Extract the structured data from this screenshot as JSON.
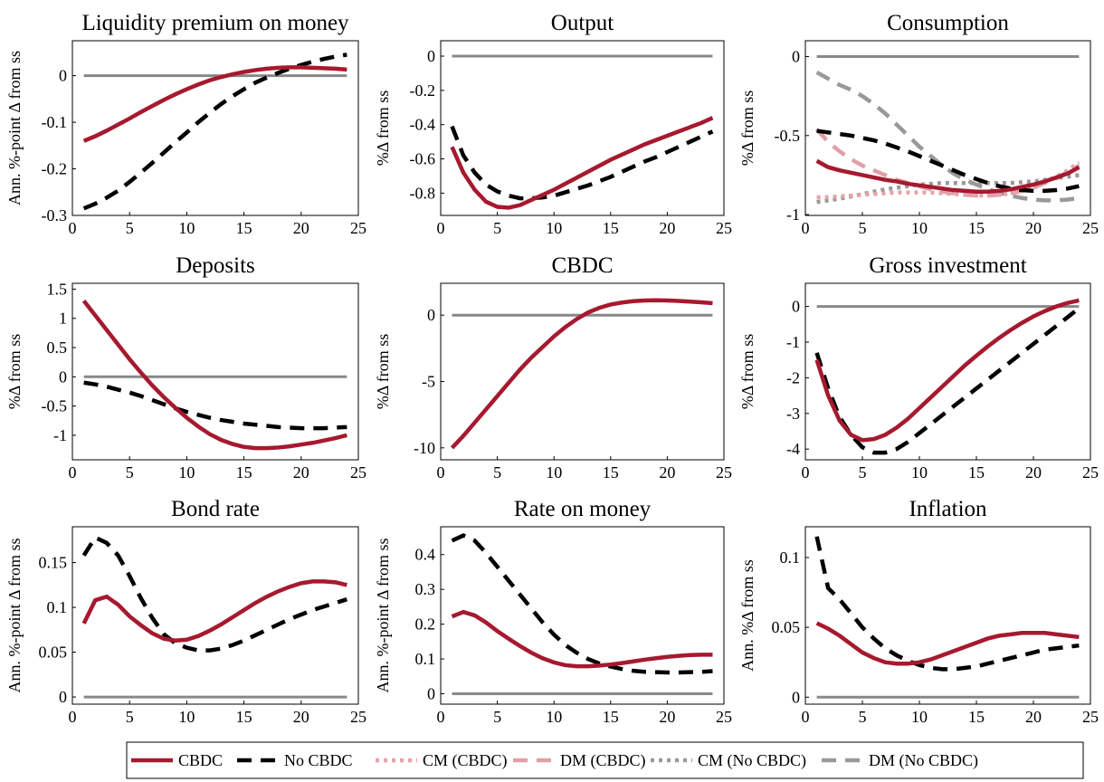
{
  "chart_data": [
    {
      "type": "line",
      "title": "Liquidity premium on money",
      "ylabel": "Ann. %-point Δ from ss",
      "x": [
        1,
        2,
        3,
        4,
        5,
        6,
        7,
        8,
        9,
        10,
        11,
        12,
        13,
        14,
        15,
        16,
        17,
        18,
        19,
        20,
        21,
        22,
        23,
        24
      ],
      "xlim": [
        0,
        25
      ],
      "xticks": [
        0,
        5,
        10,
        15,
        20,
        25
      ],
      "ylim": [
        -0.3,
        0.075
      ],
      "yticks": [
        -0.3,
        -0.2,
        -0.1,
        0
      ],
      "refline": 0,
      "series": [
        {
          "name": "CBDC",
          "color": "#a6192e",
          "style": "solid",
          "values": [
            -0.14,
            -0.13,
            -0.118,
            -0.105,
            -0.092,
            -0.078,
            -0.065,
            -0.052,
            -0.04,
            -0.029,
            -0.019,
            -0.01,
            -0.003,
            0.003,
            0.008,
            0.012,
            0.015,
            0.017,
            0.018,
            0.018,
            0.017,
            0.016,
            0.015,
            0.013
          ]
        },
        {
          "name": "No CBDC",
          "color": "#000000",
          "style": "dashed",
          "values": [
            -0.285,
            -0.275,
            -0.262,
            -0.247,
            -0.228,
            -0.208,
            -0.187,
            -0.165,
            -0.143,
            -0.122,
            -0.1,
            -0.08,
            -0.061,
            -0.044,
            -0.029,
            -0.015,
            -0.004,
            0.006,
            0.015,
            0.023,
            0.03,
            0.036,
            0.041,
            0.045
          ]
        }
      ]
    },
    {
      "type": "line",
      "title": "Output",
      "ylabel": "%Δ from ss",
      "x": [
        1,
        2,
        3,
        4,
        5,
        6,
        7,
        8,
        9,
        10,
        11,
        12,
        13,
        14,
        15,
        16,
        17,
        18,
        19,
        20,
        21,
        22,
        23,
        24
      ],
      "xlim": [
        0,
        25
      ],
      "xticks": [
        0,
        5,
        10,
        15,
        20,
        25
      ],
      "ylim": [
        -0.93,
        0.09
      ],
      "yticks": [
        -0.8,
        -0.6,
        -0.4,
        -0.2,
        0
      ],
      "refline": 0,
      "series": [
        {
          "name": "CBDC",
          "color": "#a6192e",
          "style": "solid",
          "values": [
            -0.53,
            -0.68,
            -0.78,
            -0.85,
            -0.88,
            -0.885,
            -0.87,
            -0.84,
            -0.81,
            -0.78,
            -0.745,
            -0.71,
            -0.675,
            -0.64,
            -0.605,
            -0.575,
            -0.545,
            -0.515,
            -0.49,
            -0.465,
            -0.44,
            -0.415,
            -0.39,
            -0.36
          ]
        },
        {
          "name": "No CBDC",
          "color": "#000000",
          "style": "dashed",
          "values": [
            -0.41,
            -0.58,
            -0.68,
            -0.75,
            -0.79,
            -0.815,
            -0.83,
            -0.83,
            -0.825,
            -0.815,
            -0.795,
            -0.775,
            -0.755,
            -0.73,
            -0.705,
            -0.675,
            -0.645,
            -0.615,
            -0.59,
            -0.56,
            -0.53,
            -0.5,
            -0.47,
            -0.44
          ]
        }
      ]
    },
    {
      "type": "line",
      "title": "Consumption",
      "ylabel": "%Δ from ss",
      "x": [
        1,
        2,
        3,
        4,
        5,
        6,
        7,
        8,
        9,
        10,
        11,
        12,
        13,
        14,
        15,
        16,
        17,
        18,
        19,
        20,
        21,
        22,
        23,
        24
      ],
      "xlim": [
        0,
        25
      ],
      "xticks": [
        0,
        5,
        10,
        15,
        20,
        25
      ],
      "ylim": [
        -1.005,
        0.1
      ],
      "yticks": [
        -1,
        -0.5,
        0
      ],
      "refline": 0,
      "series": [
        {
          "name": "CBDC",
          "color": "#a6192e",
          "style": "solid",
          "values": [
            -0.66,
            -0.7,
            -0.72,
            -0.735,
            -0.75,
            -0.765,
            -0.78,
            -0.79,
            -0.805,
            -0.815,
            -0.825,
            -0.835,
            -0.845,
            -0.85,
            -0.855,
            -0.855,
            -0.85,
            -0.84,
            -0.825,
            -0.81,
            -0.79,
            -0.765,
            -0.74,
            -0.7
          ]
        },
        {
          "name": "No CBDC",
          "color": "#000000",
          "style": "dashed",
          "values": [
            -0.47,
            -0.48,
            -0.49,
            -0.5,
            -0.515,
            -0.53,
            -0.55,
            -0.575,
            -0.6,
            -0.63,
            -0.66,
            -0.69,
            -0.72,
            -0.75,
            -0.775,
            -0.8,
            -0.82,
            -0.835,
            -0.845,
            -0.85,
            -0.85,
            -0.845,
            -0.835,
            -0.82
          ]
        },
        {
          "name": "CM (CBDC)",
          "color": "#e6a3ad",
          "style": "dotted",
          "values": [
            -0.89,
            -0.89,
            -0.885,
            -0.88,
            -0.875,
            -0.87,
            -0.865,
            -0.86,
            -0.86,
            -0.86,
            -0.86,
            -0.865,
            -0.87,
            -0.875,
            -0.88,
            -0.88,
            -0.875,
            -0.865,
            -0.845,
            -0.82,
            -0.79,
            -0.76,
            -0.72,
            -0.67
          ]
        },
        {
          "name": "DM (CBDC)",
          "color": "#dfa0a8",
          "style": "dashed",
          "values": [
            -0.46,
            -0.54,
            -0.6,
            -0.65,
            -0.69,
            -0.72,
            -0.75,
            -0.78,
            -0.8,
            -0.82,
            -0.84,
            -0.855,
            -0.865,
            -0.875,
            -0.88,
            -0.88,
            -0.875,
            -0.865,
            -0.85,
            -0.83,
            -0.8,
            -0.77,
            -0.73,
            -0.69
          ]
        },
        {
          "name": "CM (No CBDC)",
          "color": "#999999",
          "style": "dotted",
          "values": [
            -0.92,
            -0.91,
            -0.9,
            -0.885,
            -0.87,
            -0.855,
            -0.84,
            -0.83,
            -0.82,
            -0.81,
            -0.805,
            -0.8,
            -0.8,
            -0.8,
            -0.8,
            -0.8,
            -0.8,
            -0.8,
            -0.795,
            -0.79,
            -0.78,
            -0.77,
            -0.76,
            -0.75
          ]
        },
        {
          "name": "DM (No CBDC)",
          "color": "#999999",
          "style": "dashed",
          "values": [
            -0.1,
            -0.14,
            -0.18,
            -0.21,
            -0.25,
            -0.3,
            -0.36,
            -0.43,
            -0.5,
            -0.57,
            -0.63,
            -0.69,
            -0.74,
            -0.78,
            -0.81,
            -0.84,
            -0.86,
            -0.88,
            -0.895,
            -0.905,
            -0.91,
            -0.91,
            -0.905,
            -0.895
          ]
        }
      ]
    },
    {
      "type": "line",
      "title": "Deposits",
      "ylabel": "%Δ from ss",
      "x": [
        1,
        2,
        3,
        4,
        5,
        6,
        7,
        8,
        9,
        10,
        11,
        12,
        13,
        14,
        15,
        16,
        17,
        18,
        19,
        20,
        21,
        22,
        23,
        24
      ],
      "xlim": [
        0,
        25
      ],
      "xticks": [
        0,
        5,
        10,
        15,
        20,
        25
      ],
      "ylim": [
        -1.42,
        1.6
      ],
      "yticks": [
        -1,
        -0.5,
        0,
        0.5,
        1,
        1.5
      ],
      "refline": 0,
      "series": [
        {
          "name": "CBDC",
          "color": "#a6192e",
          "style": "solid",
          "values": [
            1.3,
            1.05,
            0.8,
            0.55,
            0.3,
            0.07,
            -0.15,
            -0.35,
            -0.53,
            -0.7,
            -0.85,
            -0.98,
            -1.08,
            -1.15,
            -1.2,
            -1.22,
            -1.22,
            -1.21,
            -1.19,
            -1.16,
            -1.13,
            -1.09,
            -1.05,
            -1.0
          ]
        },
        {
          "name": "No CBDC",
          "color": "#000000",
          "style": "dashed",
          "values": [
            -0.1,
            -0.13,
            -0.17,
            -0.22,
            -0.27,
            -0.33,
            -0.4,
            -0.47,
            -0.54,
            -0.6,
            -0.65,
            -0.7,
            -0.74,
            -0.77,
            -0.8,
            -0.82,
            -0.84,
            -0.86,
            -0.87,
            -0.88,
            -0.88,
            -0.88,
            -0.87,
            -0.86
          ]
        }
      ]
    },
    {
      "type": "line",
      "title": "CBDC",
      "ylabel": "%Δ from ss",
      "x": [
        1,
        2,
        3,
        4,
        5,
        6,
        7,
        8,
        9,
        10,
        11,
        12,
        13,
        14,
        15,
        16,
        17,
        18,
        19,
        20,
        21,
        22,
        23,
        24
      ],
      "xlim": [
        0,
        25
      ],
      "xticks": [
        0,
        5,
        10,
        15,
        20,
        25
      ],
      "ylim": [
        -10.9,
        2.4
      ],
      "yticks": [
        -10,
        -5,
        0
      ],
      "refline": 0,
      "series": [
        {
          "name": "CBDC",
          "color": "#a6192e",
          "style": "solid",
          "values": [
            -10,
            -9.1,
            -8.1,
            -7.1,
            -6.1,
            -5.1,
            -4.1,
            -3.2,
            -2.4,
            -1.6,
            -0.9,
            -0.3,
            0.2,
            0.55,
            0.8,
            0.95,
            1.05,
            1.1,
            1.12,
            1.1,
            1.07,
            1.02,
            0.97,
            0.9
          ]
        }
      ]
    },
    {
      "type": "line",
      "title": "Gross investment",
      "ylabel": "%Δ from ss",
      "x": [
        1,
        2,
        3,
        4,
        5,
        6,
        7,
        8,
        9,
        10,
        11,
        12,
        13,
        14,
        15,
        16,
        17,
        18,
        19,
        20,
        21,
        22,
        23,
        24
      ],
      "xlim": [
        0,
        25
      ],
      "xticks": [
        0,
        5,
        10,
        15,
        20,
        25
      ],
      "ylim": [
        -4.3,
        0.65
      ],
      "yticks": [
        -4,
        -3,
        -2,
        -1,
        0
      ],
      "refline": 0,
      "series": [
        {
          "name": "CBDC",
          "color": "#a6192e",
          "style": "solid",
          "values": [
            -1.5,
            -2.5,
            -3.2,
            -3.6,
            -3.75,
            -3.72,
            -3.6,
            -3.4,
            -3.15,
            -2.85,
            -2.55,
            -2.25,
            -1.95,
            -1.65,
            -1.38,
            -1.12,
            -0.88,
            -0.66,
            -0.46,
            -0.28,
            -0.13,
            0,
            0.1,
            0.17
          ]
        },
        {
          "name": "No CBDC",
          "color": "#000000",
          "style": "dashed",
          "values": [
            -1.3,
            -2.3,
            -3.1,
            -3.6,
            -3.95,
            -4.1,
            -4.1,
            -4.0,
            -3.8,
            -3.55,
            -3.3,
            -3.05,
            -2.8,
            -2.55,
            -2.3,
            -2.05,
            -1.8,
            -1.55,
            -1.3,
            -1.05,
            -0.8,
            -0.55,
            -0.3,
            -0.05
          ]
        }
      ]
    },
    {
      "type": "line",
      "title": "Bond rate",
      "ylabel": "Ann. %-point Δ from ss",
      "x": [
        1,
        2,
        3,
        4,
        5,
        6,
        7,
        8,
        9,
        10,
        11,
        12,
        13,
        14,
        15,
        16,
        17,
        18,
        19,
        20,
        21,
        22,
        23,
        24
      ],
      "xlim": [
        0,
        25
      ],
      "xticks": [
        0,
        5,
        10,
        15,
        20,
        25
      ],
      "ylim": [
        -0.008,
        0.19
      ],
      "yticks": [
        0,
        0.05,
        0.1,
        0.15
      ],
      "refline": 0,
      "series": [
        {
          "name": "CBDC",
          "color": "#a6192e",
          "style": "solid",
          "values": [
            0.082,
            0.108,
            0.112,
            0.103,
            0.09,
            0.08,
            0.071,
            0.065,
            0.063,
            0.064,
            0.068,
            0.074,
            0.081,
            0.089,
            0.097,
            0.105,
            0.112,
            0.118,
            0.123,
            0.127,
            0.129,
            0.129,
            0.128,
            0.125
          ]
        },
        {
          "name": "No CBDC",
          "color": "#000000",
          "style": "dashed",
          "values": [
            0.158,
            0.178,
            0.172,
            0.158,
            0.135,
            0.11,
            0.088,
            0.07,
            0.06,
            0.055,
            0.052,
            0.052,
            0.054,
            0.058,
            0.063,
            0.069,
            0.075,
            0.081,
            0.087,
            0.092,
            0.097,
            0.101,
            0.105,
            0.109
          ]
        }
      ]
    },
    {
      "type": "line",
      "title": "Rate on money",
      "ylabel": "Ann. %-point Δ from ss",
      "x": [
        1,
        2,
        3,
        4,
        5,
        6,
        7,
        8,
        9,
        10,
        11,
        12,
        13,
        14,
        15,
        16,
        17,
        18,
        19,
        20,
        21,
        22,
        23,
        24
      ],
      "xlim": [
        0,
        25
      ],
      "xticks": [
        0,
        5,
        10,
        15,
        20,
        25
      ],
      "ylim": [
        -0.03,
        0.48
      ],
      "yticks": [
        0,
        0.1,
        0.2,
        0.3,
        0.4
      ],
      "refline": 0,
      "series": [
        {
          "name": "CBDC",
          "color": "#a6192e",
          "style": "solid",
          "values": [
            0.222,
            0.235,
            0.225,
            0.205,
            0.18,
            0.158,
            0.137,
            0.118,
            0.102,
            0.09,
            0.082,
            0.079,
            0.079,
            0.081,
            0.084,
            0.088,
            0.093,
            0.098,
            0.102,
            0.106,
            0.109,
            0.111,
            0.112,
            0.112
          ]
        },
        {
          "name": "No CBDC",
          "color": "#000000",
          "style": "dashed",
          "values": [
            0.44,
            0.455,
            0.44,
            0.405,
            0.365,
            0.325,
            0.285,
            0.245,
            0.205,
            0.17,
            0.14,
            0.118,
            0.1,
            0.087,
            0.078,
            0.071,
            0.066,
            0.063,
            0.062,
            0.061,
            0.061,
            0.062,
            0.063,
            0.065
          ]
        }
      ]
    },
    {
      "type": "line",
      "title": "Inflation",
      "ylabel": "Ann. %Δ from ss",
      "x": [
        1,
        2,
        3,
        4,
        5,
        6,
        7,
        8,
        9,
        10,
        11,
        12,
        13,
        14,
        15,
        16,
        17,
        18,
        19,
        20,
        21,
        22,
        23,
        24
      ],
      "xlim": [
        0,
        25
      ],
      "xticks": [
        0,
        5,
        10,
        15,
        20,
        25
      ],
      "ylim": [
        -0.005,
        0.122
      ],
      "yticks": [
        0,
        0.05,
        0.1
      ],
      "refline": 0,
      "series": [
        {
          "name": "CBDC",
          "color": "#a6192e",
          "style": "solid",
          "values": [
            0.053,
            0.049,
            0.044,
            0.038,
            0.032,
            0.028,
            0.025,
            0.024,
            0.024,
            0.025,
            0.027,
            0.03,
            0.033,
            0.036,
            0.039,
            0.042,
            0.044,
            0.045,
            0.046,
            0.046,
            0.046,
            0.045,
            0.044,
            0.043
          ]
        },
        {
          "name": "No CBDC",
          "color": "#000000",
          "style": "dashed",
          "values": [
            0.115,
            0.078,
            0.07,
            0.06,
            0.05,
            0.042,
            0.035,
            0.03,
            0.026,
            0.023,
            0.021,
            0.02,
            0.02,
            0.021,
            0.022,
            0.024,
            0.026,
            0.028,
            0.03,
            0.032,
            0.034,
            0.035,
            0.036,
            0.037
          ]
        }
      ]
    }
  ]
}
